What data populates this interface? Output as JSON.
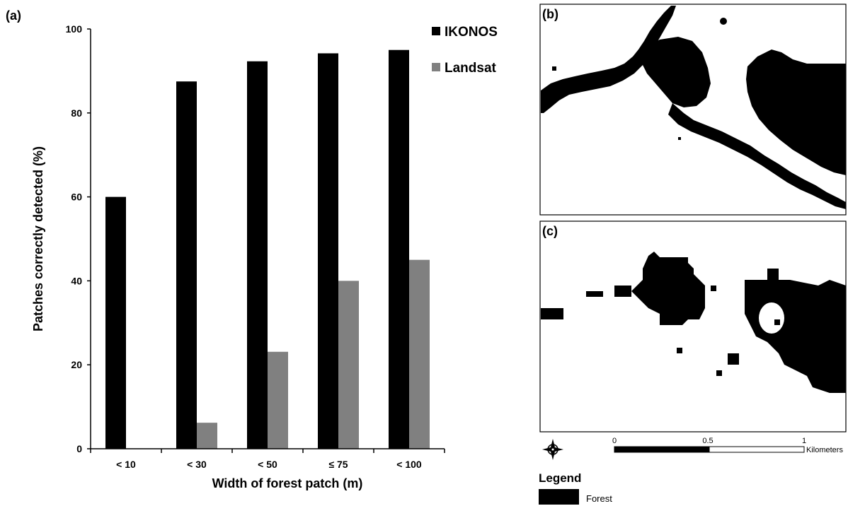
{
  "colors": {
    "ikonos": "#000000",
    "landsat": "#808080",
    "axis": "#000000",
    "forest": "#000000"
  },
  "panels": {
    "a_label": "(a)",
    "b_label": "(b)",
    "c_label": "(c)"
  },
  "chart_data": {
    "type": "bar",
    "categories": [
      "< 10",
      "< 30",
      "< 50",
      "≤ 75",
      "< 100"
    ],
    "series": [
      {
        "name": "IKONOS",
        "values": [
          60,
          87.5,
          92.3,
          94.2,
          95
        ]
      },
      {
        "name": "Landsat",
        "values": [
          0,
          6.2,
          23.1,
          40,
          45
        ]
      }
    ],
    "xlabel": "Width of forest patch (m)",
    "ylabel": "Patches correctly detected (%)",
    "ylim": [
      0,
      100
    ],
    "yticks": [
      0,
      20,
      40,
      60,
      80,
      100
    ],
    "grid": false,
    "legend_position": "top-right"
  },
  "map": {
    "scale_labels": [
      "0",
      "0.5",
      "1"
    ],
    "scale_unit": "Kilometers",
    "legend_title": "Legend",
    "legend_item": "Forest",
    "north_icon": "compass-rose-icon"
  }
}
